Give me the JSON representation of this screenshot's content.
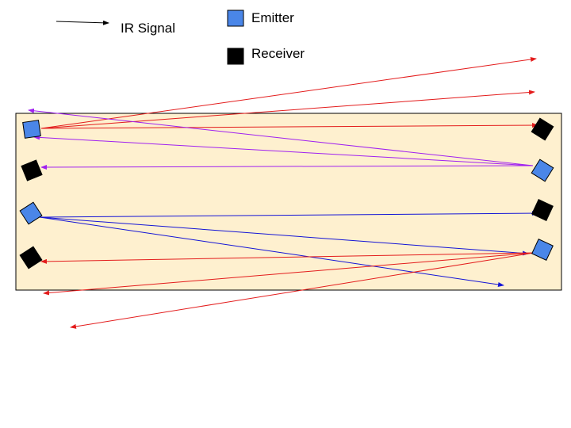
{
  "legend": {
    "signal_label": "IR Signal",
    "emitter_label": "Emitter",
    "receiver_label": "Receiver"
  },
  "colors": {
    "panel_fill": "#fef0cf",
    "panel_border": "#000000",
    "emitter": "#4a86e8",
    "receiver": "#000000",
    "signal_legend": "#000000",
    "signal_red": "#e31c1c",
    "signal_purple": "#a020f0",
    "signal_blue": "#1414d6"
  },
  "devices": [
    {
      "id": "left-emitter-1",
      "type": "emitter"
    },
    {
      "id": "left-receiver-1",
      "type": "receiver"
    },
    {
      "id": "left-emitter-2",
      "type": "emitter"
    },
    {
      "id": "left-receiver-2",
      "type": "receiver"
    },
    {
      "id": "right-receiver-1",
      "type": "receiver"
    },
    {
      "id": "right-emitter-1",
      "type": "emitter"
    },
    {
      "id": "right-receiver-2",
      "type": "receiver"
    },
    {
      "id": "right-emitter-2",
      "type": "emitter"
    }
  ]
}
